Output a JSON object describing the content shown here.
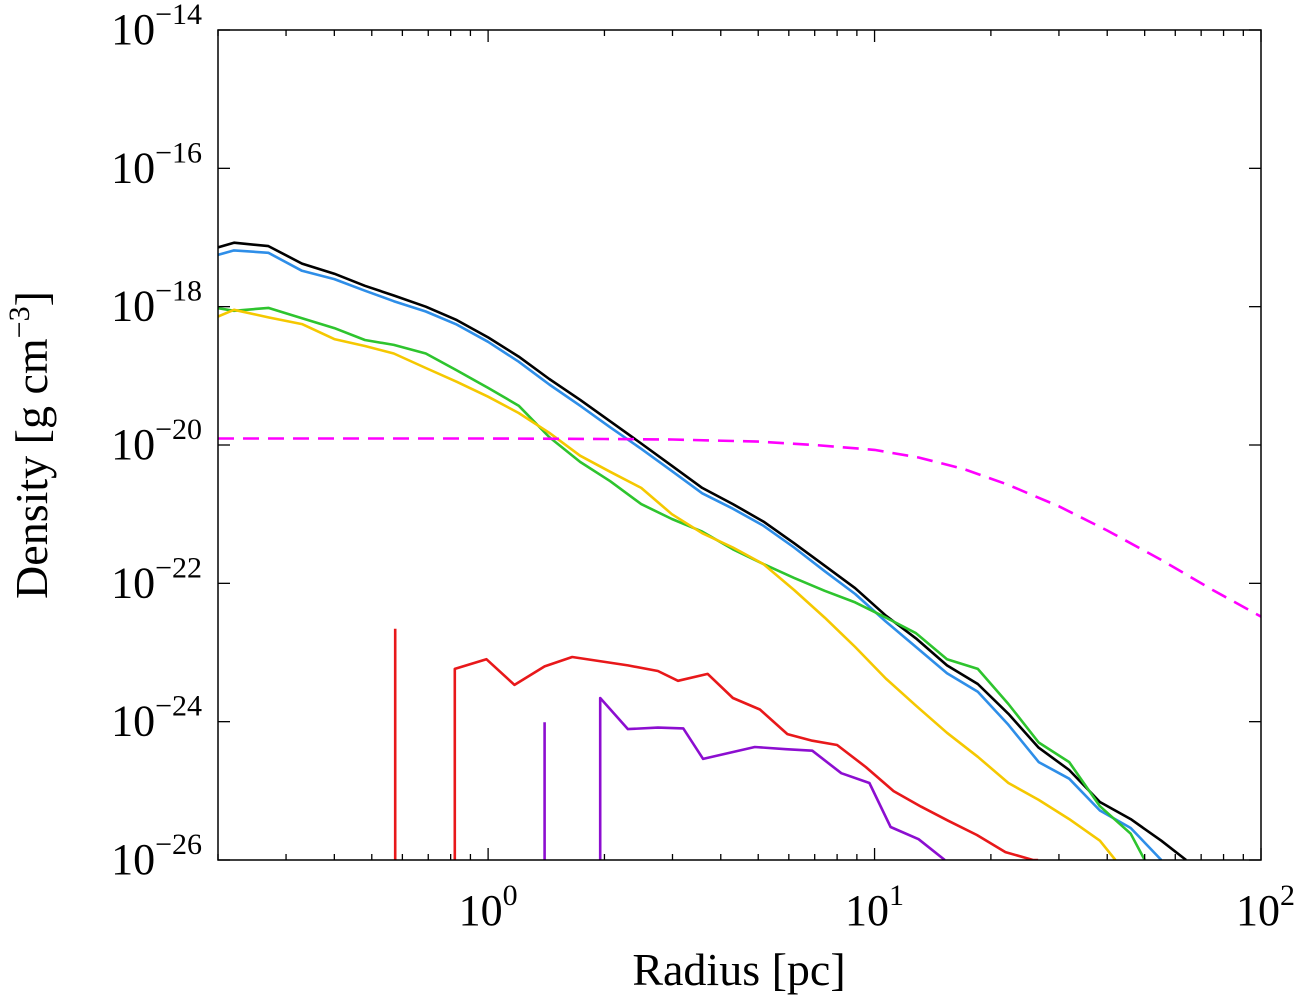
{
  "chart_data": {
    "type": "line",
    "xlabel": "Radius [pc]",
    "ylabel": "Density [g cm",
    "ylabel_unit_exponent": "−3",
    "ylabel_close": "]",
    "xscale": "log",
    "yscale": "log",
    "xlim": [
      0.2,
      100
    ],
    "ylim": [
      1e-26,
      1e-14
    ],
    "grid": false,
    "x_ticks": [
      {
        "value": 1,
        "base": "10",
        "exp": "0"
      },
      {
        "value": 10,
        "base": "10",
        "exp": "1"
      },
      {
        "value": 100,
        "base": "10",
        "exp": "2"
      }
    ],
    "y_ticks": [
      {
        "value": 1e-26,
        "base": "10",
        "exp": "−26"
      },
      {
        "value": 1e-24,
        "base": "10",
        "exp": "−24"
      },
      {
        "value": 1e-22,
        "base": "10",
        "exp": "−22"
      },
      {
        "value": 1e-20,
        "base": "10",
        "exp": "−20"
      },
      {
        "value": 1e-18,
        "base": "10",
        "exp": "−18"
      },
      {
        "value": 1e-16,
        "base": "10",
        "exp": "−16"
      },
      {
        "value": 1e-14,
        "base": "10",
        "exp": "−14"
      }
    ],
    "series": [
      {
        "color": "#000000",
        "style": "solid",
        "x": [
          0.2,
          0.22,
          0.27,
          0.33,
          0.4,
          0.48,
          0.57,
          0.69,
          0.83,
          1.0,
          1.2,
          1.44,
          1.73,
          2.07,
          2.49,
          2.99,
          3.58,
          4.3,
          5.16,
          6.19,
          7.43,
          8.91,
          10.7,
          12.8,
          15.4,
          18.5,
          22.2,
          26.6,
          31.9,
          38.3,
          46.0,
          55.2,
          64.0
        ],
        "y": [
          7.2e-18,
          8.4e-18,
          7.5e-18,
          4.2e-18,
          3e-18,
          2e-18,
          1.45e-18,
          1e-18,
          6.4e-19,
          3.6e-19,
          1.9e-19,
          9e-20,
          4.5e-20,
          2.2e-20,
          1.05e-20,
          5e-21,
          2.4e-21,
          1.4e-21,
          7.8e-22,
          3.8e-22,
          1.8e-22,
          8.5e-23,
          3.4e-23,
          1.6e-23,
          6.5e-24,
          3.5e-24,
          1.3e-24,
          4.2e-25,
          2e-25,
          6.9e-26,
          3.9e-26,
          1.9e-26,
          1e-26
        ]
      },
      {
        "color": "#2e8ee8",
        "style": "solid",
        "x": [
          0.2,
          0.22,
          0.27,
          0.33,
          0.4,
          0.48,
          0.57,
          0.69,
          0.83,
          1.0,
          1.2,
          1.44,
          1.73,
          2.07,
          2.49,
          2.99,
          3.58,
          4.3,
          5.16,
          6.19,
          7.43,
          8.91,
          10.7,
          12.8,
          15.4,
          18.5,
          22.2,
          26.6,
          31.9,
          38.3,
          46.0,
          55.2
        ],
        "y": [
          5.6e-18,
          6.5e-18,
          6e-18,
          3.3e-18,
          2.5e-18,
          1.7e-18,
          1.2e-18,
          8.5e-19,
          5.5e-19,
          3.1e-19,
          1.6e-19,
          7.5e-20,
          3.7e-20,
          1.8e-20,
          8.8e-21,
          4.2e-21,
          2e-21,
          1.2e-21,
          6.8e-22,
          3.3e-22,
          1.5e-22,
          7e-23,
          2.8e-23,
          1.2e-23,
          5e-24,
          2.7e-24,
          9e-25,
          2.6e-25,
          1.5e-25,
          5.2e-26,
          2.9e-26,
          1e-26
        ]
      },
      {
        "color": "#2ec42e",
        "style": "solid",
        "x": [
          0.2,
          0.22,
          0.27,
          0.33,
          0.4,
          0.48,
          0.57,
          0.69,
          0.83,
          1.0,
          1.2,
          1.44,
          1.73,
          2.07,
          2.49,
          2.99,
          3.58,
          4.3,
          5.16,
          6.19,
          7.43,
          8.91,
          10.7,
          12.8,
          15.4,
          18.5,
          22.2,
          26.6,
          31.9,
          38.3,
          46.0,
          50.0
        ],
        "y": [
          9.5e-19,
          8.7e-19,
          9.6e-19,
          6.8e-19,
          4.9e-19,
          3.3e-19,
          2.8e-19,
          2.1e-19,
          1.2e-19,
          6.7e-20,
          3.7e-20,
          1.3e-20,
          5.7e-21,
          3e-21,
          1.4e-21,
          8.5e-22,
          5.6e-22,
          3.1e-22,
          1.9e-22,
          1.2e-22,
          7.8e-23,
          5.3e-23,
          3.2e-23,
          1.9e-23,
          8e-24,
          5.8e-24,
          1.8e-24,
          5e-25,
          2.6e-25,
          6e-26,
          2.4e-26,
          1e-26
        ]
      },
      {
        "color": "#f5c800",
        "style": "solid",
        "x": [
          0.2,
          0.22,
          0.27,
          0.33,
          0.4,
          0.48,
          0.57,
          0.69,
          0.83,
          1.0,
          1.2,
          1.44,
          1.73,
          2.07,
          2.49,
          2.99,
          3.58,
          4.3,
          5.16,
          6.19,
          7.43,
          8.91,
          10.7,
          12.8,
          15.4,
          18.5,
          22.2,
          26.6,
          31.9,
          38.3,
          42.0
        ],
        "y": [
          7.2e-19,
          9e-19,
          7e-19,
          5.6e-19,
          3.4e-19,
          2.7e-19,
          2.1e-19,
          1.3e-19,
          8.2e-20,
          5e-20,
          2.9e-20,
          1.5e-20,
          7e-21,
          4.1e-21,
          2.4e-21,
          1e-21,
          5.3e-22,
          3.3e-22,
          1.9e-22,
          8e-23,
          3.2e-23,
          1.2e-23,
          4.2e-24,
          1.7e-24,
          6.9e-25,
          3.1e-25,
          1.3e-25,
          7.4e-26,
          3.9e-26,
          1.9e-26,
          1e-26
        ]
      },
      {
        "color": "#e8181a",
        "style": "solid",
        "segments": [
          {
            "x": [
              0.575,
              0.575
            ],
            "y": [
              1e-26,
              2.2e-23
            ]
          },
          {
            "x": [
              0.82,
              0.82,
              0.99,
              1.17,
              1.4,
              1.65,
              2.3,
              2.75,
              3.1,
              3.7,
              4.3,
              5.05,
              5.95,
              6.9,
              8.0,
              9.5,
              11.2,
              13.2,
              15.5,
              18.4,
              21.8,
              25.7,
              26.5
            ],
            "y": [
              1e-26,
              5.8e-24,
              8e-24,
              3.4e-24,
              6.3e-24,
              8.6e-24,
              6.5e-24,
              5.4e-24,
              3.9e-24,
              4.9e-24,
              2.2e-24,
              1.5e-24,
              6.6e-25,
              5.3e-25,
              4.6e-25,
              2.2e-25,
              9.9e-26,
              5.9e-26,
              3.7e-26,
              2.3e-26,
              1.3e-26,
              1e-26,
              1e-26
            ]
          }
        ]
      },
      {
        "color": "#8c0ed0",
        "style": "solid",
        "segments": [
          {
            "x": [
              1.4,
              1.4
            ],
            "y": [
              1e-26,
              9.8e-25
            ]
          },
          {
            "x": [
              1.95,
              1.95,
              2.3,
              2.75,
              3.2,
              3.6,
              4.9,
              5.9,
              6.9,
              8.2,
              9.7,
              11.0,
              13.0,
              15.2
            ],
            "y": [
              1e-26,
              2.2e-24,
              7.8e-25,
              8.2e-25,
              8e-25,
              2.9e-25,
              4.3e-25,
              4e-25,
              3.8e-25,
              1.8e-25,
              1.3e-25,
              3e-26,
              2e-26,
              1e-26
            ]
          }
        ]
      },
      {
        "color": "#ff00ff",
        "style": "dashed",
        "x": [
          0.2,
          0.3,
          0.5,
          1.0,
          2.0,
          3.0,
          5.0,
          7.0,
          10.0,
          13.0,
          17.0,
          22.0,
          30.0,
          40.0,
          55.0,
          75.0,
          100.0
        ],
        "y": [
          1.24e-20,
          1.24e-20,
          1.24e-20,
          1.24e-20,
          1.22e-20,
          1.2e-20,
          1.12e-20,
          1e-20,
          8.5e-21,
          6.6e-21,
          4.5e-21,
          2.7e-21,
          1.3e-21,
          5.8e-22,
          2.2e-22,
          8e-23,
          3.3e-23
        ]
      }
    ]
  }
}
